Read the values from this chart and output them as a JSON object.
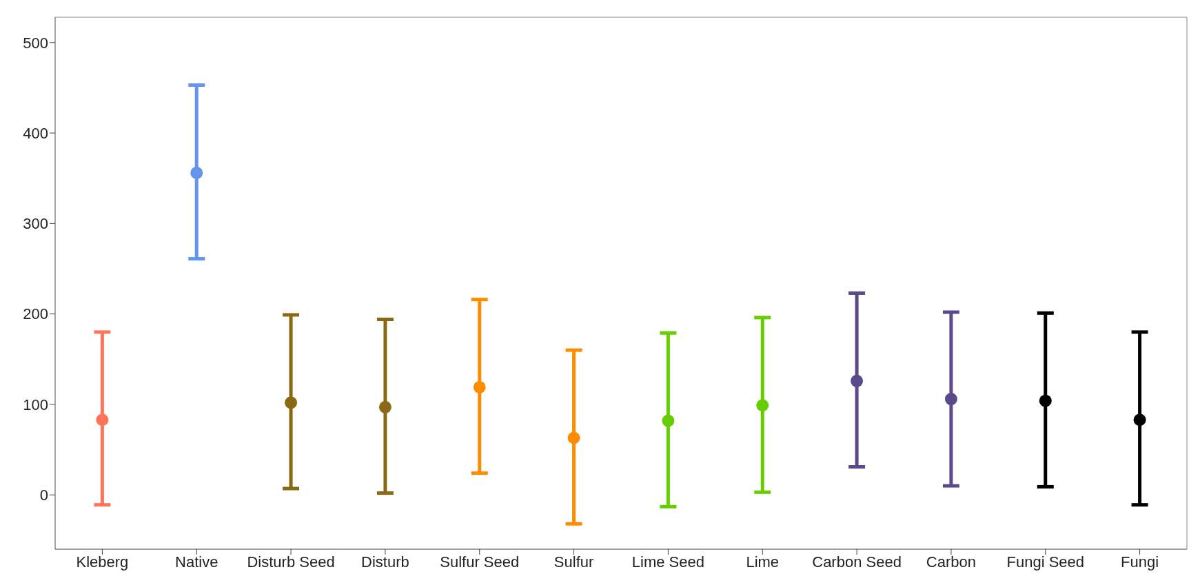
{
  "chart_data": {
    "type": "scatter",
    "categories": [
      "Kleberg",
      "Native",
      "Disturb Seed",
      "Disturb",
      "Sulfur Seed",
      "Sulfur",
      "Lime Seed",
      "Lime",
      "Carbon Seed",
      "Carbon",
      "Fungi Seed",
      "Fungi"
    ],
    "values": [
      83,
      356,
      102,
      97,
      119,
      63,
      82,
      99,
      126,
      106,
      104,
      83
    ],
    "errors": [
      [
        -11,
        180
      ],
      [
        261,
        453
      ],
      [
        7,
        199
      ],
      [
        2,
        194
      ],
      [
        24,
        216
      ],
      [
        -32,
        160
      ],
      [
        -13,
        179
      ],
      [
        3,
        196
      ],
      [
        31,
        223
      ],
      [
        10,
        202
      ],
      [
        9,
        201
      ],
      [
        -11,
        180
      ]
    ],
    "colors": [
      "#ff735a",
      "#6495ed",
      "#8b6914",
      "#8b6914",
      "#ff8c00",
      "#ff8c00",
      "#66cd00",
      "#66cd00",
      "#5b4a8b",
      "#5b4a8b",
      "#000000",
      "#000000"
    ],
    "ylim": [
      -60,
      528
    ],
    "yticks": [
      0,
      100,
      200,
      300,
      400,
      500
    ],
    "marker": "circle",
    "grid": false,
    "legend": false
  }
}
